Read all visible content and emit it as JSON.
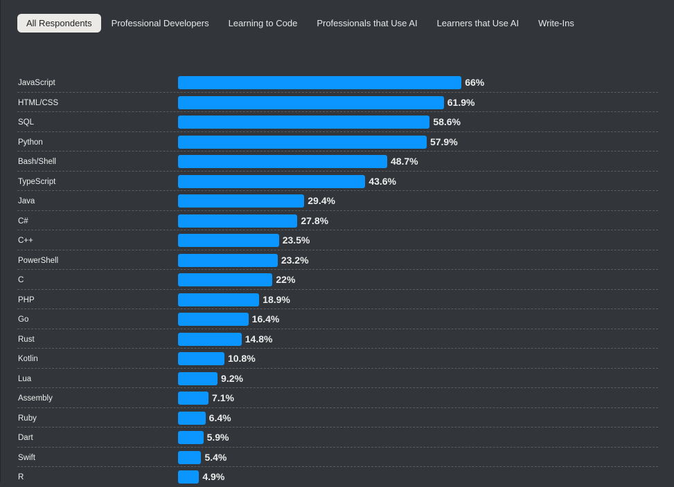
{
  "tabs": [
    {
      "label": "All Respondents",
      "active": true
    },
    {
      "label": "Professional Developers",
      "active": false
    },
    {
      "label": "Learning to Code",
      "active": false
    },
    {
      "label": "Professionals that Use AI",
      "active": false
    },
    {
      "label": "Learners that Use AI",
      "active": false
    },
    {
      "label": "Write-Ins",
      "active": false
    }
  ],
  "colors": {
    "bar": "#0a95ff",
    "background": "#32363a",
    "active_tab": "#ebeae6"
  },
  "chart_data": {
    "type": "bar",
    "orientation": "horizontal",
    "title": "",
    "xlabel": "",
    "ylabel": "",
    "unit": "%",
    "xlim": [
      0,
      100
    ],
    "grid": false,
    "categories": [
      "JavaScript",
      "HTML/CSS",
      "SQL",
      "Python",
      "Bash/Shell",
      "TypeScript",
      "Java",
      "C#",
      "C++",
      "PowerShell",
      "C",
      "PHP",
      "Go",
      "Rust",
      "Kotlin",
      "Lua",
      "Assembly",
      "Ruby",
      "Dart",
      "Swift",
      "R"
    ],
    "values": [
      66,
      61.9,
      58.6,
      57.9,
      48.7,
      43.6,
      29.4,
      27.8,
      23.5,
      23.2,
      22,
      18.9,
      16.4,
      14.8,
      10.8,
      9.2,
      7.1,
      6.4,
      5.9,
      5.4,
      4.9
    ],
    "value_labels": [
      "66%",
      "61.9%",
      "58.6%",
      "57.9%",
      "48.7%",
      "43.6%",
      "29.4%",
      "27.8%",
      "23.5%",
      "23.2%",
      "22%",
      "18.9%",
      "16.4%",
      "14.8%",
      "10.8%",
      "9.2%",
      "7.1%",
      "6.4%",
      "5.9%",
      "5.4%",
      "4.9%"
    ]
  }
}
